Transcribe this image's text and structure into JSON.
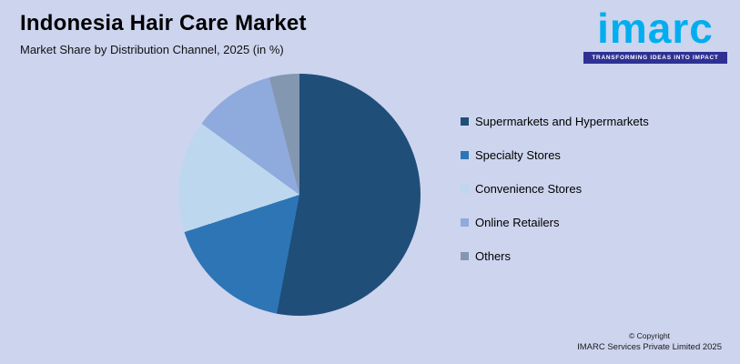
{
  "page": {
    "background": "#cdd4ee"
  },
  "header": {
    "title": "Indonesia Hair Care Market",
    "subtitle": "Market Share by Distribution Channel, 2025 (in %)"
  },
  "logo": {
    "wordmark": "imarc",
    "tagline": "TRANSFORMING IDEAS INTO IMPACT",
    "wordmark_color": "#00aeef",
    "tagline_bg_color": "#2e3192"
  },
  "legend": {
    "items": [
      {
        "label": "Supermarkets and Hypermarkets",
        "color": "#1f4e79"
      },
      {
        "label": "Specialty Stores",
        "color": "#2e75b6"
      },
      {
        "label": "Convenience Stores",
        "color": "#bdd7ee"
      },
      {
        "label": "Online Retailers",
        "color": "#8faadc"
      },
      {
        "label": "Others",
        "color": "#8497b0"
      }
    ]
  },
  "chart_data": {
    "type": "pie",
    "title": "Indonesia Hair Care Market",
    "subtitle": "Market Share by Distribution Channel, 2025 (in %)",
    "categories": [
      "Supermarkets and Hypermarkets",
      "Specialty Stores",
      "Convenience Stores",
      "Online Retailers",
      "Others"
    ],
    "values": [
      53,
      17,
      15,
      11,
      4
    ],
    "unit": "%",
    "colors": [
      "#1f4e79",
      "#2e75b6",
      "#bdd7ee",
      "#8faadc",
      "#8497b0"
    ],
    "start_angle_deg": 0,
    "direction": "clockwise",
    "legend_position": "right",
    "data_labels_shown": false
  },
  "footer": {
    "copyright_line1": "© Copyright",
    "copyright_line2": "IMARC Services Private Limited 2025"
  }
}
